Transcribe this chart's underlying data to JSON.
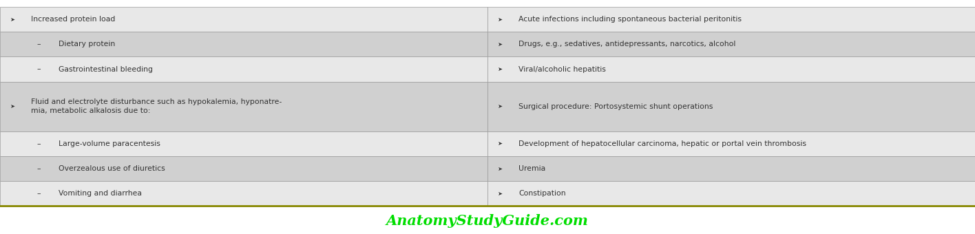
{
  "bg_color": "#ffffff",
  "table_bg_light": "#e8e8e8",
  "table_bg_dark": "#d0d0d0",
  "border_color": "#999999",
  "text_color": "#333333",
  "watermark_color": "#00dd00",
  "watermark_text": "AnatomyStudyGuide.com",
  "col_split": 0.5,
  "bottom_line_color": "#888800",
  "rows": [
    {
      "left": {
        "bullet": ">",
        "text": "Increased protein load",
        "indent": 0
      },
      "right": {
        "bullet": ">",
        "text": "Acute infections including spontaneous bacterial peritonitis",
        "indent": 0
      },
      "bg": "light"
    },
    {
      "left": {
        "bullet": "-",
        "text": "Dietary protein",
        "indent": 1
      },
      "right": {
        "bullet": ">",
        "text": "Drugs, e.g., sedatives, antidepressants, narcotics, alcohol",
        "indent": 0
      },
      "bg": "dark"
    },
    {
      "left": {
        "bullet": "-",
        "text": "Gastrointestinal bleeding",
        "indent": 1
      },
      "right": {
        "bullet": ">",
        "text": "Viral/alcoholic hepatitis",
        "indent": 0
      },
      "bg": "light"
    },
    {
      "left": {
        "bullet": ">",
        "text": "Fluid and electrolyte disturbance such as hypokalemia, hyponatre-\nmia, metabolic alkalosis due to:",
        "indent": 0
      },
      "right": {
        "bullet": ">",
        "text": "Surgical procedure: Portosystemic shunt operations",
        "indent": 0
      },
      "bg": "dark"
    },
    {
      "left": {
        "bullet": "-",
        "text": "Large-volume paracentesis",
        "indent": 1
      },
      "right": {
        "bullet": ">",
        "text": "Development of hepatocellular carcinoma, hepatic or portal vein thrombosis",
        "indent": 0
      },
      "bg": "light"
    },
    {
      "left": {
        "bullet": "-",
        "text": "Overzealous use of diuretics",
        "indent": 1
      },
      "right": {
        "bullet": ">",
        "text": "Uremia",
        "indent": 0
      },
      "bg": "dark"
    },
    {
      "left": {
        "bullet": "-",
        "text": "Vomiting and diarrhea",
        "indent": 1
      },
      "right": {
        "bullet": ">",
        "text": "Constipation",
        "indent": 0
      },
      "bg": "light"
    }
  ]
}
